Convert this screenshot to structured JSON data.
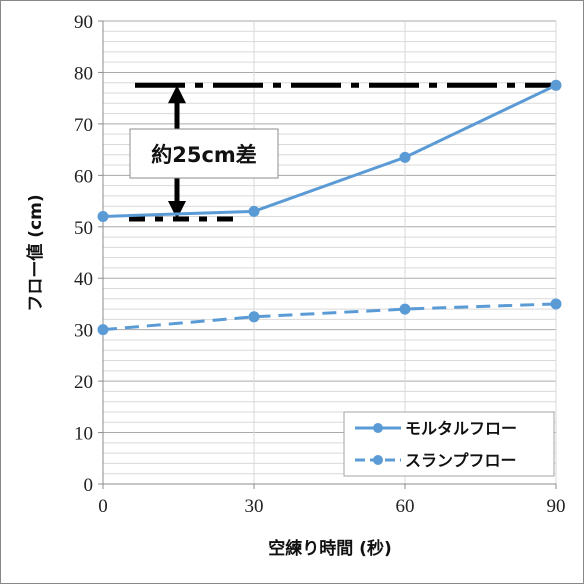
{
  "chart_data": {
    "type": "line",
    "title": "",
    "xlabel": "空練り時間 (秒)",
    "ylabel": "フロー値 (cm)",
    "x": [
      0,
      30,
      60,
      90
    ],
    "xlim": [
      0,
      90
    ],
    "ylim": [
      0,
      90
    ],
    "xticks": [
      "0",
      "30",
      "60",
      "90"
    ],
    "yticks": [
      "0",
      "10",
      "20",
      "30",
      "40",
      "50",
      "60",
      "70",
      "80",
      "90"
    ],
    "grid": "horizontal major and minor",
    "legend_position": "bottom-right",
    "colors": {
      "series": "#5b9bd5",
      "annotation": "#000000",
      "grid_major": "#aaaaaa",
      "grid_minor": "#d9d9d9"
    },
    "series": [
      {
        "name": "モルタルフロー",
        "values": [
          52,
          53,
          63.5,
          77.5
        ],
        "line_style": "solid"
      },
      {
        "name": "スランプフロー",
        "values": [
          30,
          32.5,
          34,
          35
        ],
        "line_style": "dashed"
      }
    ],
    "annotation": {
      "text": "約25cm差",
      "upper_level": 77.5,
      "lower_level": 51.5,
      "line_style": "dash-dot"
    }
  }
}
